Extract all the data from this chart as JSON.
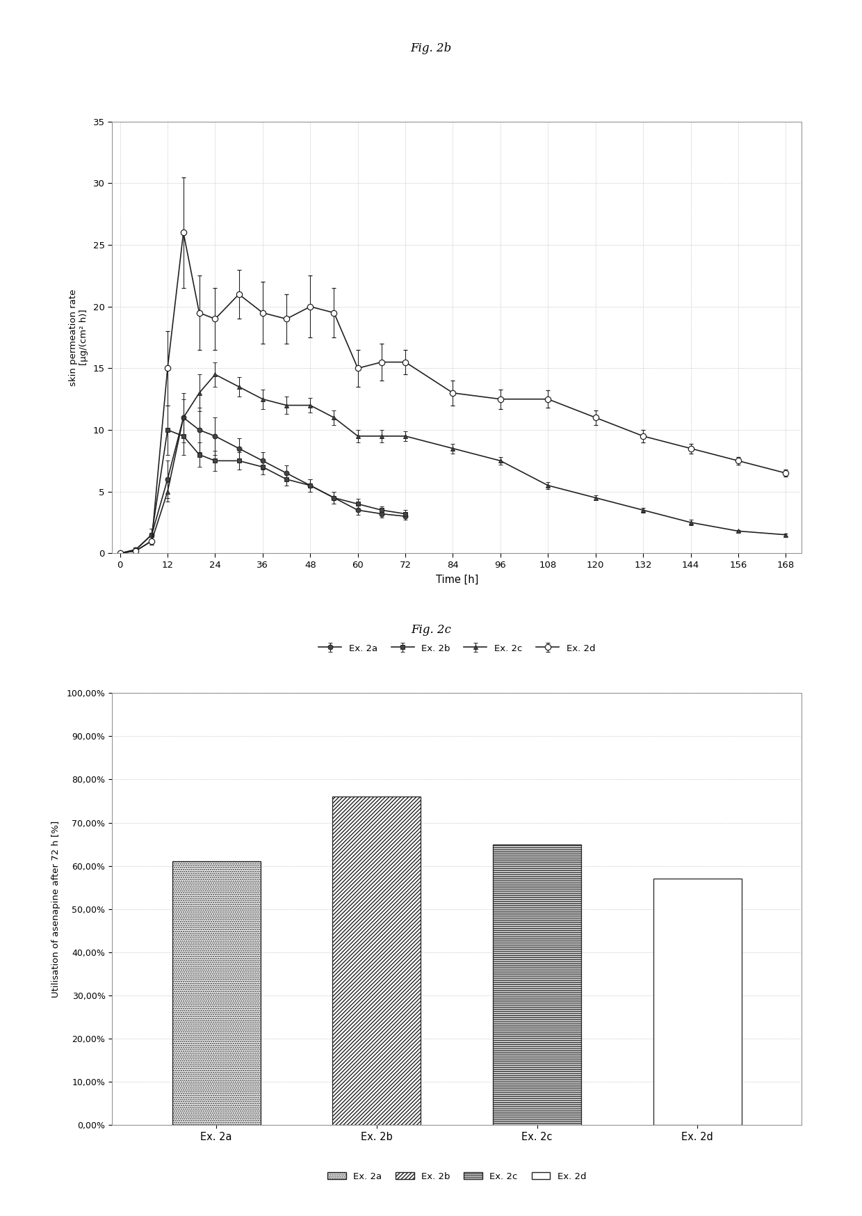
{
  "fig2b_title": "Fig. 2b",
  "fig2c_title": "Fig. 2c",
  "line_xlabel": "Time [h]",
  "line_ylabel": "skin permeation rate\n[µg/(cm² h)]",
  "bar_ylabel": "Utilisation of asenapine after 72 h [%]",
  "line_xticks": [
    0,
    12,
    24,
    36,
    48,
    60,
    72,
    84,
    96,
    108,
    120,
    132,
    144,
    156,
    168
  ],
  "line_ylim": [
    0,
    35
  ],
  "line_yticks": [
    0,
    5,
    10,
    15,
    20,
    25,
    30,
    35
  ],
  "bar_ylim": [
    0,
    100
  ],
  "bar_yticks": [
    0,
    10,
    20,
    30,
    40,
    50,
    60,
    70,
    80,
    90,
    100
  ],
  "bar_yticklabels": [
    "0,00%",
    "10,00%",
    "20,00%",
    "30,00%",
    "40,00%",
    "50,00%",
    "60,00%",
    "70,00%",
    "80,00%",
    "90,00%",
    "100,00%"
  ],
  "series_labels": [
    "Ex. 2a",
    "Ex. 2b",
    "Ex. 2c",
    "Ex. 2d"
  ],
  "ex2a_x": [
    0,
    4,
    8,
    12,
    16,
    20,
    24,
    30,
    36,
    42,
    48,
    54,
    60,
    66,
    72
  ],
  "ex2a_y": [
    0.0,
    0.3,
    1.5,
    6.0,
    11.0,
    10.0,
    9.5,
    8.5,
    7.5,
    6.5,
    5.5,
    4.5,
    3.5,
    3.2,
    3.0
  ],
  "ex2a_err": [
    0.0,
    0.1,
    0.5,
    1.5,
    2.0,
    1.8,
    1.5,
    0.8,
    0.7,
    0.6,
    0.5,
    0.5,
    0.4,
    0.3,
    0.3
  ],
  "ex2b_x": [
    0,
    4,
    8,
    12,
    16,
    20,
    24,
    30,
    36,
    42,
    48,
    54,
    60,
    66,
    72
  ],
  "ex2b_y": [
    0.0,
    0.3,
    1.5,
    10.0,
    9.5,
    8.0,
    7.5,
    7.5,
    7.0,
    6.0,
    5.5,
    4.5,
    4.0,
    3.5,
    3.2
  ],
  "ex2b_err": [
    0.0,
    0.1,
    0.5,
    2.0,
    1.5,
    1.0,
    0.8,
    0.7,
    0.6,
    0.5,
    0.5,
    0.5,
    0.4,
    0.3,
    0.3
  ],
  "ex2c_x": [
    0,
    4,
    8,
    12,
    16,
    20,
    24,
    30,
    36,
    42,
    48,
    54,
    60,
    66,
    72,
    84,
    96,
    108,
    120,
    132,
    144,
    156,
    168
  ],
  "ex2c_y": [
    0.0,
    0.2,
    1.0,
    5.0,
    11.0,
    13.0,
    14.5,
    13.5,
    12.5,
    12.0,
    12.0,
    11.0,
    9.5,
    9.5,
    9.5,
    8.5,
    7.5,
    5.5,
    4.5,
    3.5,
    2.5,
    1.8,
    1.5
  ],
  "ex2c_err": [
    0.0,
    0.1,
    0.3,
    0.8,
    1.5,
    1.5,
    1.0,
    0.8,
    0.8,
    0.7,
    0.6,
    0.6,
    0.5,
    0.5,
    0.4,
    0.4,
    0.3,
    0.3,
    0.2,
    0.2,
    0.2,
    0.1,
    0.1
  ],
  "ex2d_x": [
    0,
    4,
    8,
    12,
    16,
    20,
    24,
    30,
    36,
    42,
    48,
    54,
    60,
    66,
    72,
    84,
    96,
    108,
    120,
    132,
    144,
    156,
    168
  ],
  "ex2d_y": [
    0.0,
    0.2,
    1.0,
    15.0,
    26.0,
    19.5,
    19.0,
    21.0,
    19.5,
    19.0,
    20.0,
    19.5,
    15.0,
    15.5,
    15.5,
    13.0,
    12.5,
    12.5,
    11.0,
    9.5,
    8.5,
    7.5,
    6.5
  ],
  "ex2d_err": [
    0.0,
    0.1,
    0.3,
    3.0,
    4.5,
    3.0,
    2.5,
    2.0,
    2.5,
    2.0,
    2.5,
    2.0,
    1.5,
    1.5,
    1.0,
    1.0,
    0.8,
    0.7,
    0.6,
    0.5,
    0.4,
    0.3,
    0.3
  ],
  "bar_categories": [
    "Ex. 2a",
    "Ex. 2b",
    "Ex. 2c",
    "Ex. 2d"
  ],
  "bar_values": [
    61.0,
    76.0,
    65.0,
    57.0
  ],
  "background_color": "#ffffff",
  "plot_bg_color": "#ffffff",
  "grid_color": "#aaaaaa"
}
